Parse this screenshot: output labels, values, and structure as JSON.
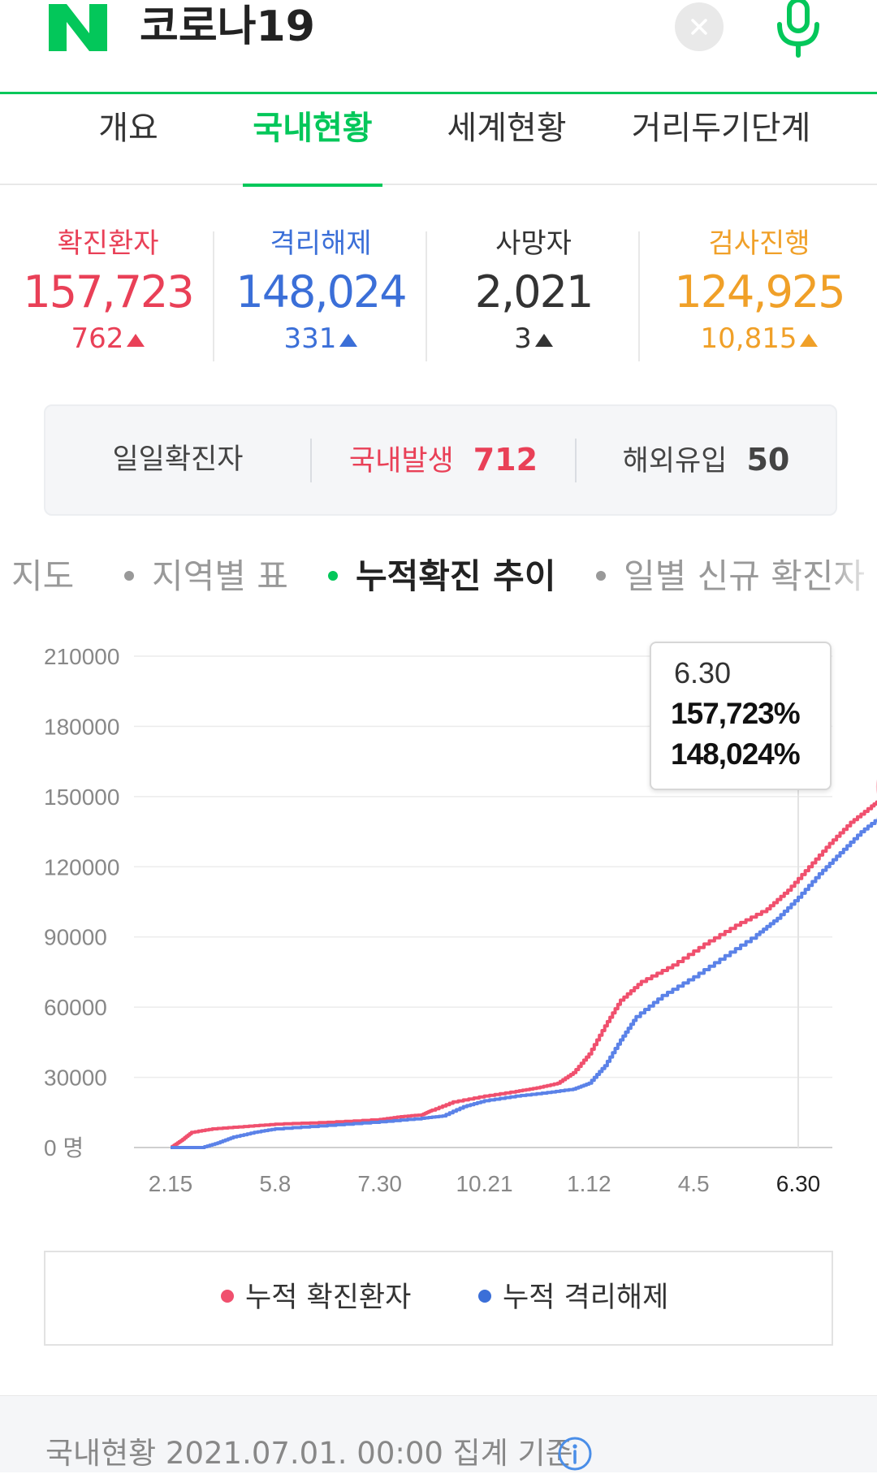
{
  "header": {
    "logo_letter": "N",
    "query": "코로나19",
    "brand_color": "#03c75a"
  },
  "tabs": [
    {
      "label": "개요"
    },
    {
      "label": "국내현황",
      "active": true
    },
    {
      "label": "세계현황"
    },
    {
      "label": "거리두기단계"
    }
  ],
  "stats": [
    {
      "label": "확진환자",
      "value": "157,723",
      "change": "762",
      "color": "#e94057"
    },
    {
      "label": "격리해제",
      "value": "148,024",
      "change": "331",
      "color": "#3b6fd8"
    },
    {
      "label": "사망자",
      "value": "2,021",
      "change": "3",
      "color": "#333333"
    },
    {
      "label": "검사진행",
      "value": "124,925",
      "change": "10,815",
      "color": "#f0a028"
    }
  ],
  "daily": {
    "title": "일일확진자",
    "domestic_label": "국내발생",
    "domestic_value": "712",
    "overseas_label": "해외유입",
    "overseas_value": "50"
  },
  "subtabs": [
    {
      "label": "지도"
    },
    {
      "label": "지역별 표"
    },
    {
      "label": "누적확진 추이",
      "active": true
    },
    {
      "label": "일별 신규 확진자"
    }
  ],
  "chart_data": {
    "type": "line",
    "x_tick_labels": [
      "2.15",
      "5.8",
      "7.30",
      "10.21",
      "1.12",
      "4.5",
      "6.30"
    ],
    "y_tick_labels": [
      "0 명",
      "30000",
      "60000",
      "90000",
      "120000",
      "150000",
      "180000",
      "210000"
    ],
    "ylim": [
      0,
      210000
    ],
    "grid": true,
    "series": [
      {
        "name": "누적 확진환자",
        "color": "#f0506e",
        "points": [
          [
            0,
            0
          ],
          [
            0.1,
            3000
          ],
          [
            0.2,
            6500
          ],
          [
            0.4,
            8000
          ],
          [
            0.7,
            9000
          ],
          [
            1.0,
            10000
          ],
          [
            1.5,
            10800
          ],
          [
            2.0,
            12000
          ],
          [
            2.2,
            13200
          ],
          [
            2.4,
            14000
          ],
          [
            2.5,
            16000
          ],
          [
            2.7,
            19500
          ],
          [
            3.0,
            22000
          ],
          [
            3.3,
            24000
          ],
          [
            3.5,
            25500
          ],
          [
            3.7,
            27500
          ],
          [
            3.85,
            32000
          ],
          [
            4.0,
            40000
          ],
          [
            4.15,
            52000
          ],
          [
            4.3,
            63000
          ],
          [
            4.5,
            71000
          ],
          [
            4.8,
            78000
          ],
          [
            5.1,
            87000
          ],
          [
            5.4,
            95000
          ],
          [
            5.7,
            102000
          ],
          [
            5.9,
            110000
          ],
          [
            6.1,
            120000
          ],
          [
            6.3,
            130000
          ],
          [
            6.5,
            139000
          ],
          [
            6.7,
            146000
          ],
          [
            6.85,
            151000
          ],
          [
            7.0,
            157723
          ]
        ]
      },
      {
        "name": "누적 격리해제",
        "color": "#5b82e8",
        "points": [
          [
            0,
            0
          ],
          [
            0.3,
            0
          ],
          [
            0.45,
            2000
          ],
          [
            0.6,
            4500
          ],
          [
            0.8,
            6500
          ],
          [
            1.0,
            8000
          ],
          [
            1.5,
            9500
          ],
          [
            2.0,
            11000
          ],
          [
            2.4,
            12500
          ],
          [
            2.6,
            13500
          ],
          [
            2.8,
            17500
          ],
          [
            3.0,
            20000
          ],
          [
            3.3,
            22000
          ],
          [
            3.6,
            23500
          ],
          [
            3.85,
            25000
          ],
          [
            4.0,
            27500
          ],
          [
            4.15,
            35000
          ],
          [
            4.3,
            46000
          ],
          [
            4.45,
            56000
          ],
          [
            4.7,
            65000
          ],
          [
            5.0,
            73000
          ],
          [
            5.3,
            82000
          ],
          [
            5.6,
            91000
          ],
          [
            5.8,
            98000
          ],
          [
            6.0,
            107000
          ],
          [
            6.2,
            117000
          ],
          [
            6.4,
            126000
          ],
          [
            6.6,
            135000
          ],
          [
            6.8,
            142000
          ],
          [
            7.0,
            148024
          ]
        ]
      }
    ]
  },
  "tooltip": {
    "date": "6.30",
    "value1": "157,723%",
    "value2": "148,024%"
  },
  "legend": [
    {
      "label": "누적 확진환자",
      "color": "#f0506e"
    },
    {
      "label": "누적 격리해제",
      "color": "#3b6fd8"
    }
  ],
  "footer": {
    "text": "국내현황 2021.07.01. 00:00 집계 기준"
  }
}
